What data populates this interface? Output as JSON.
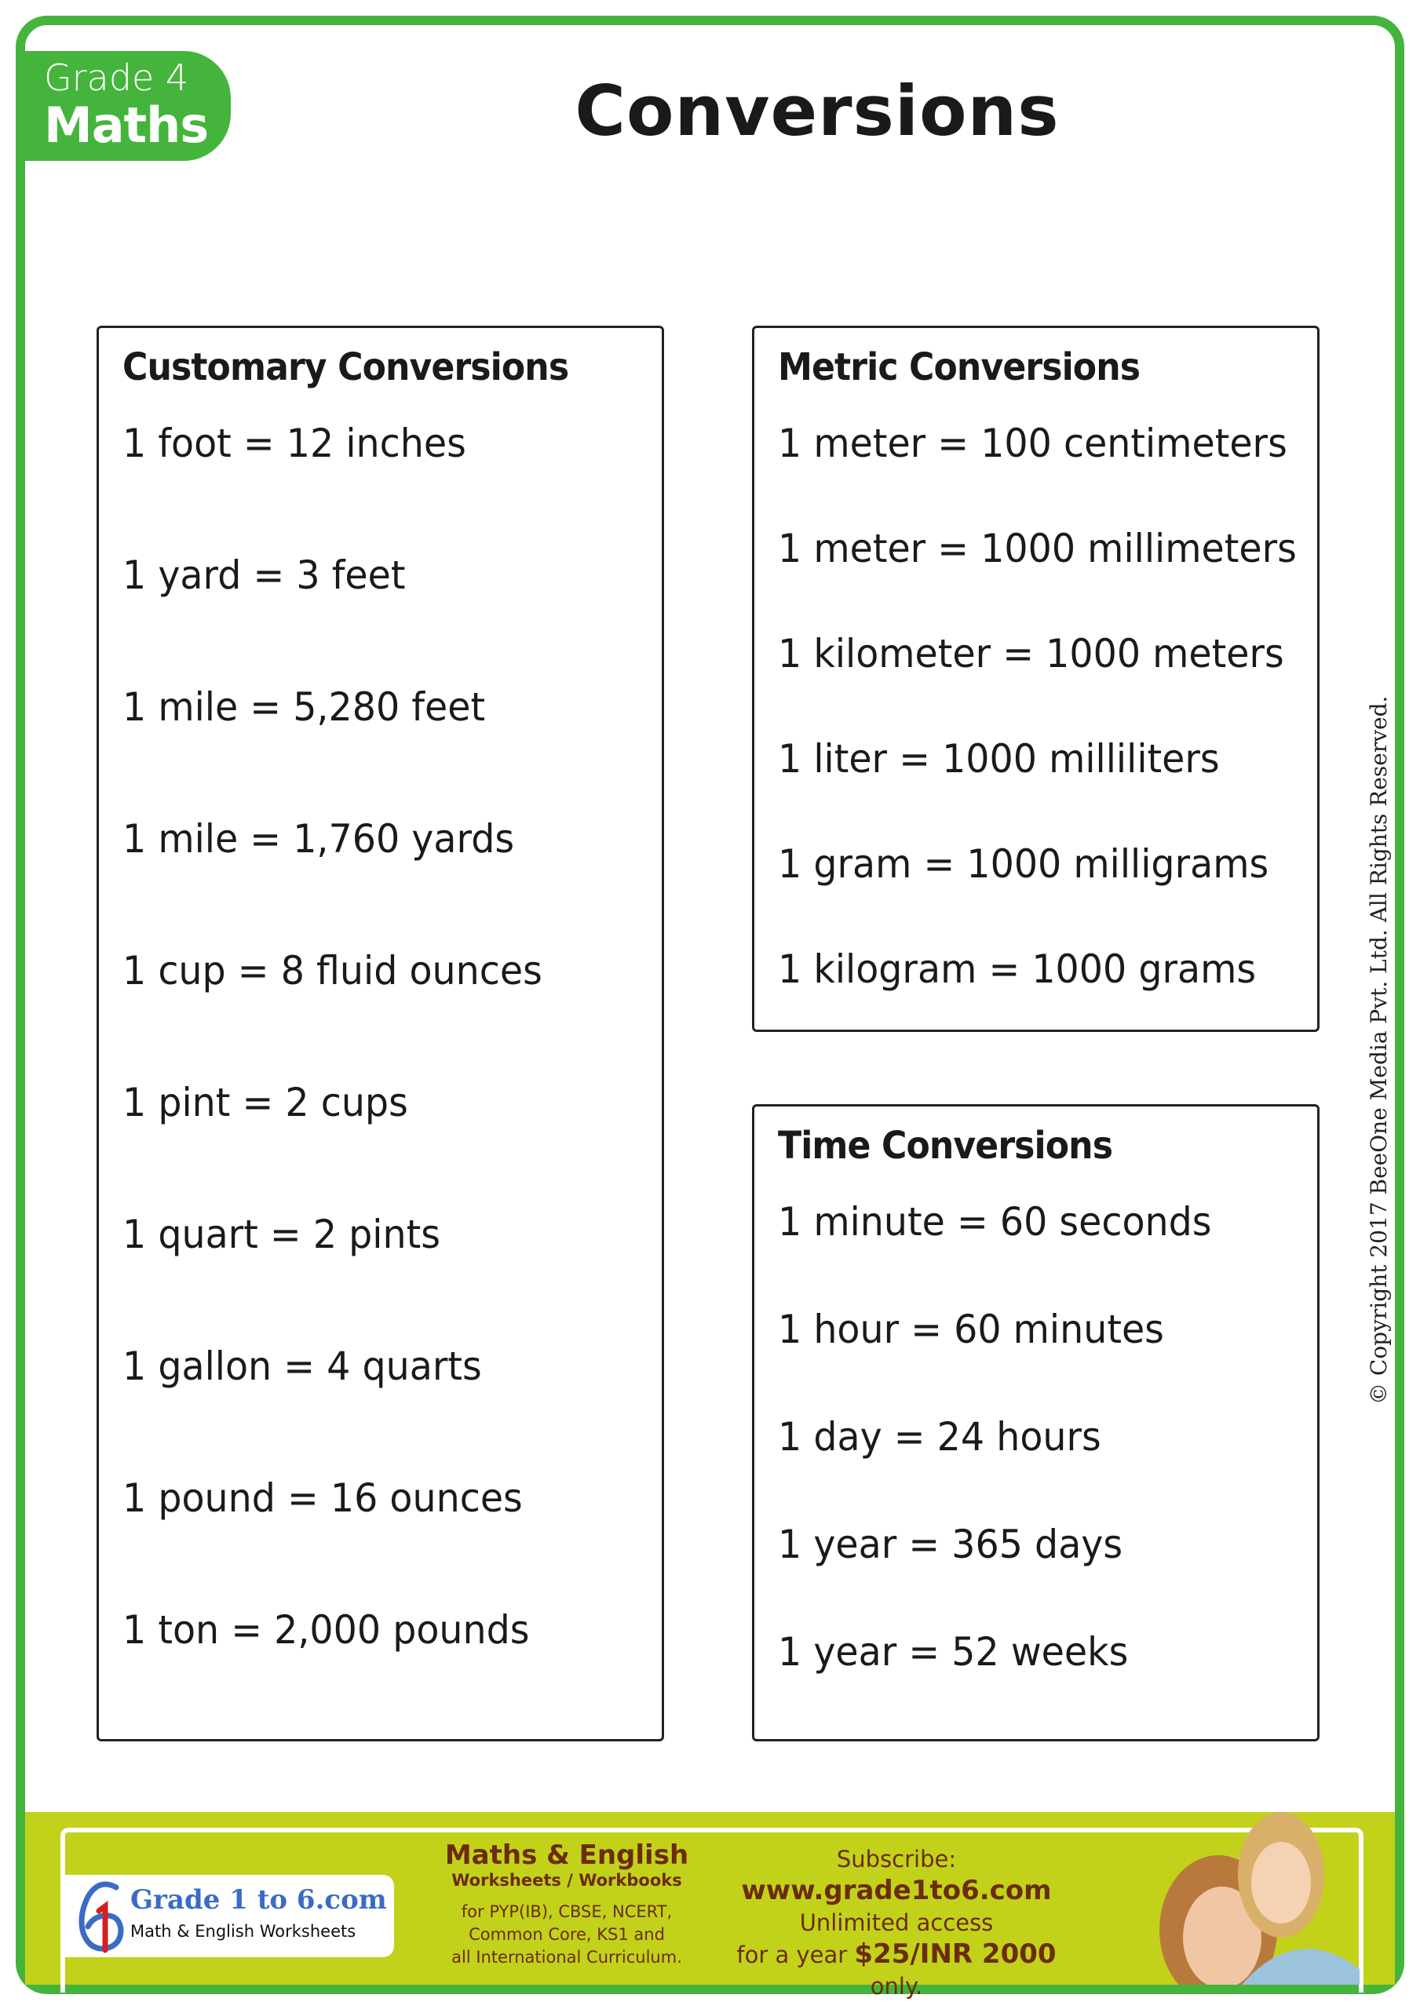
{
  "badge": {
    "grade": "Grade 4",
    "subject": "Maths"
  },
  "title": "Conversions",
  "customary": {
    "heading": "Customary Conversions",
    "items": [
      "1 foot = 12 inches",
      "1 yard = 3 feet",
      "1 mile = 5,280 feet",
      "1 mile = 1,760 yards",
      "1 cup = 8 fluid ounces",
      "1 pint = 2 cups",
      "1 quart = 2 pints",
      "1 gallon = 4 quarts",
      "1 pound = 16 ounces",
      "1 ton = 2,000 pounds"
    ]
  },
  "metric": {
    "heading": "Metric Conversions",
    "items": [
      "1 meter = 100 centimeters",
      "1 meter = 1000 millimeters",
      "1 kilometer = 1000 meters",
      "1 liter = 1000 milliliters",
      "1 gram = 1000 milligrams",
      "1 kilogram = 1000 grams"
    ]
  },
  "time": {
    "heading": "Time Conversions",
    "items": [
      "1 minute = 60 seconds",
      "1 hour = 60 minutes",
      "1 day = 24 hours",
      "1 year = 365 days",
      "1 year = 52 weeks"
    ]
  },
  "copyright": "© Copyright 2017 BeeOne Media Pvt. Ltd. All Rights Reserved.",
  "footer": {
    "logo_name": "Grade 1 to 6.com",
    "logo_tagline": "Math & English Worksheets",
    "mid_title": "Maths & English",
    "mid_sub": "Worksheets / Workbooks",
    "mid_lines": [
      "for PYP(IB), CBSE, NCERT,",
      "Common Core, KS1 and",
      "all International Curriculum."
    ],
    "subscribe": "Subscribe:",
    "url": "www.grade1to6.com",
    "access": "Unlimited access",
    "year_prefix": "for a year",
    "price": "$25/INR 2000",
    "suffix": "only."
  },
  "colors": {
    "border": "#44b43c",
    "footer": "#c2d21a",
    "footer_text": "#6b2c0c"
  }
}
